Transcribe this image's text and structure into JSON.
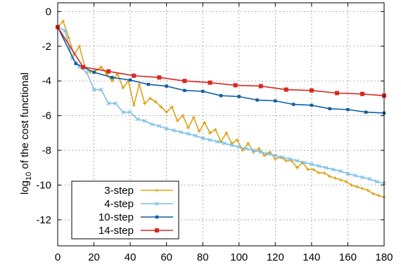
{
  "chart_data": {
    "type": "line",
    "title": "",
    "xlabel": "",
    "ylabel_prefix": "log",
    "ylabel_sub": "10",
    "ylabel_rest": " of the cost functional",
    "xlim": [
      0,
      180
    ],
    "ylim": [
      -13.5,
      0.5
    ],
    "xticks": [
      0,
      20,
      40,
      60,
      80,
      100,
      120,
      140,
      160,
      180
    ],
    "yticks": [
      0,
      -2,
      -4,
      -6,
      -8,
      -10,
      -12
    ],
    "grid": true,
    "legend_position": "bottom-left",
    "series": [
      {
        "name": "3-step",
        "color": "#dba31a",
        "marker": "plus",
        "x": [
          0,
          3,
          6,
          9,
          12,
          15,
          18,
          21,
          24,
          27,
          30,
          33,
          36,
          39,
          42,
          45,
          48,
          51,
          54,
          57,
          60,
          63,
          66,
          69,
          72,
          75,
          78,
          81,
          84,
          87,
          90,
          93,
          96,
          99,
          102,
          105,
          108,
          111,
          114,
          117,
          120,
          123,
          126,
          129,
          132,
          135,
          138,
          141,
          144,
          147,
          150,
          153,
          156,
          159,
          162,
          165,
          168,
          171,
          174,
          177,
          180
        ],
        "y": [
          -0.9,
          -0.55,
          -1.5,
          -2.5,
          -2.0,
          -3.2,
          -3.5,
          -3.4,
          -3.2,
          -3.6,
          -4.0,
          -3.6,
          -4.4,
          -4.0,
          -5.4,
          -4.2,
          -5.3,
          -5.0,
          -5.2,
          -5.5,
          -5.8,
          -5.5,
          -6.3,
          -6.0,
          -6.7,
          -6.1,
          -6.9,
          -6.4,
          -7.0,
          -6.8,
          -7.5,
          -7.0,
          -7.6,
          -7.4,
          -8.0,
          -7.6,
          -8.1,
          -7.9,
          -8.3,
          -8.1,
          -8.5,
          -8.4,
          -8.6,
          -8.6,
          -9.0,
          -8.7,
          -9.1,
          -9.1,
          -9.3,
          -9.3,
          -9.5,
          -9.6,
          -9.7,
          -9.8,
          -10.0,
          -10.1,
          -10.2,
          -10.3,
          -10.5,
          -10.6,
          -10.7
        ]
      },
      {
        "name": "4-step",
        "color": "#7bbfe8",
        "marker": "cross",
        "x": [
          0,
          4,
          8,
          12,
          16,
          20,
          24,
          28,
          32,
          36,
          40,
          44,
          48,
          52,
          56,
          60,
          64,
          68,
          72,
          76,
          80,
          84,
          88,
          92,
          96,
          100,
          104,
          108,
          112,
          116,
          120,
          124,
          128,
          132,
          136,
          140,
          144,
          148,
          152,
          156,
          160,
          164,
          168,
          172,
          176,
          180
        ],
        "y": [
          -0.9,
          -1.1,
          -2.7,
          -3.2,
          -3.5,
          -4.5,
          -4.5,
          -5.3,
          -5.3,
          -5.8,
          -5.8,
          -6.2,
          -6.3,
          -6.5,
          -6.6,
          -6.75,
          -6.85,
          -6.95,
          -7.05,
          -7.15,
          -7.3,
          -7.4,
          -7.5,
          -7.6,
          -7.7,
          -7.8,
          -7.9,
          -8.0,
          -8.1,
          -8.2,
          -8.3,
          -8.4,
          -8.5,
          -8.6,
          -8.7,
          -8.8,
          -8.9,
          -9.0,
          -9.1,
          -9.2,
          -9.35,
          -9.45,
          -9.55,
          -9.65,
          -9.8,
          -9.9
        ]
      },
      {
        "name": "10-step",
        "color": "#0e5fa4",
        "marker": "square-small",
        "x": [
          0,
          10,
          20,
          30,
          40,
          50,
          60,
          70,
          80,
          90,
          100,
          110,
          120,
          130,
          140,
          150,
          160,
          170,
          180
        ],
        "y": [
          -0.9,
          -3.0,
          -3.5,
          -3.8,
          -3.95,
          -4.2,
          -4.3,
          -4.55,
          -4.6,
          -4.85,
          -4.9,
          -5.1,
          -5.15,
          -5.35,
          -5.4,
          -5.6,
          -5.65,
          -5.8,
          -5.85
        ]
      },
      {
        "name": "14-step",
        "color": "#d7281f",
        "marker": "square",
        "x": [
          0,
          14,
          28,
          42,
          56,
          70,
          84,
          98,
          112,
          126,
          140,
          154,
          168,
          180
        ],
        "y": [
          -0.9,
          -3.2,
          -3.45,
          -3.7,
          -3.8,
          -4.0,
          -4.1,
          -4.25,
          -4.3,
          -4.5,
          -4.55,
          -4.7,
          -4.75,
          -4.85
        ]
      }
    ]
  }
}
